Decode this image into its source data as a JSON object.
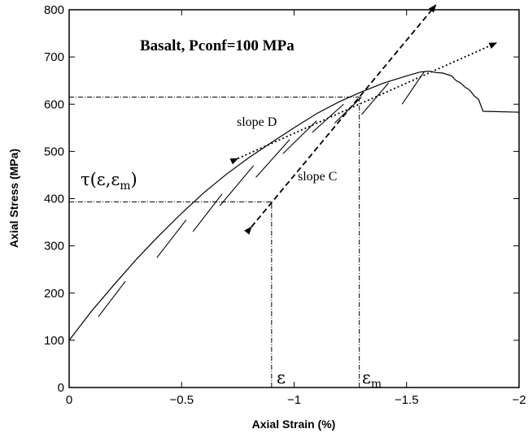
{
  "chart_data": {
    "type": "line",
    "title": "Basalt, Pconf=100 MPa",
    "xlabel": "Axial Strain (%)",
    "ylabel": "Axial Stress (MPa)",
    "xlim": [
      0,
      -2
    ],
    "ylim": [
      0,
      800
    ],
    "x_ticks": [
      0,
      -0.5,
      -1,
      -1.5,
      -2
    ],
    "x_tick_labels": [
      "0",
      "−0.5",
      "−1",
      "−1.5",
      "−2"
    ],
    "y_ticks": [
      0,
      100,
      200,
      300,
      400,
      500,
      600,
      700,
      800
    ],
    "y_tick_labels": [
      "0",
      "100",
      "200",
      "300",
      "400",
      "500",
      "600",
      "700",
      "800"
    ],
    "grid": false,
    "series": [
      {
        "role": "stress-strain-curve",
        "x": [
          0,
          -0.1,
          -0.2,
          -0.3,
          -0.4,
          -0.5,
          -0.6,
          -0.7,
          -0.8,
          -0.9,
          -1.0,
          -1.1,
          -1.2,
          -1.3,
          -1.4,
          -1.5,
          -1.56,
          -1.6,
          -1.63,
          -1.66,
          -1.7,
          -1.72,
          -1.74,
          -1.76,
          -1.78,
          -1.8,
          -1.82,
          -1.84,
          -2.0
        ],
        "y": [
          100,
          162,
          218,
          272,
          322,
          369,
          413,
          452,
          487,
          519,
          550,
          580,
          605,
          626,
          645,
          660,
          668,
          670,
          667,
          666,
          660,
          650,
          645,
          636,
          630,
          618,
          610,
          585,
          583
        ]
      }
    ],
    "unloading_segments": [
      {
        "x": [
          -0.13,
          -0.25
        ],
        "y": [
          150,
          225
        ]
      },
      {
        "x": [
          -0.39,
          -0.52
        ],
        "y": [
          275,
          355
        ]
      },
      {
        "x": [
          -0.55,
          -0.68
        ],
        "y": [
          330,
          410
        ]
      },
      {
        "x": [
          -0.67,
          -0.82
        ],
        "y": [
          385,
          470
        ]
      },
      {
        "x": [
          -0.83,
          -0.98
        ],
        "y": [
          445,
          525
        ]
      },
      {
        "x": [
          -0.95,
          -1.1
        ],
        "y": [
          495,
          565
        ]
      },
      {
        "x": [
          -1.08,
          -1.22
        ],
        "y": [
          540,
          600
        ]
      },
      {
        "x": [
          -1.18,
          -1.3
        ],
        "y": [
          560,
          615
        ]
      },
      {
        "x": [
          -1.3,
          -1.42
        ],
        "y": [
          578,
          645
        ]
      },
      {
        "x": [
          -1.48,
          -1.58
        ],
        "y": [
          600,
          670
        ]
      }
    ],
    "reference_lines": [
      {
        "name": "strain-em-drop",
        "x": [
          -1.29,
          -1.29
        ],
        "y": [
          0,
          615
        ]
      },
      {
        "name": "stress-at-em",
        "x": [
          0,
          -1.29
        ],
        "y": [
          615,
          615
        ]
      },
      {
        "name": "strain-e-drop",
        "x": [
          -0.9,
          -0.9
        ],
        "y": [
          0,
          393
        ]
      },
      {
        "name": "stress-tau",
        "x": [
          0,
          -0.9
        ],
        "y": [
          393,
          393
        ]
      }
    ],
    "slope_arrows": [
      {
        "name": "slope-C",
        "style": "dashed",
        "x": [
          -0.81,
          -1.63
        ],
        "y": [
          340,
          810
        ]
      },
      {
        "name": "slope-D",
        "style": "dotted",
        "x": [
          -0.75,
          -1.9
        ],
        "y": [
          485,
          730
        ]
      }
    ],
    "annotations": {
      "slope_d": "slope D",
      "slope_c": "slope C",
      "tau_label": "τ(ε,ε",
      "tau_sub": "m",
      "tau_close": ")",
      "eps": "ε",
      "eps_m": "ε",
      "eps_m_sub": "m"
    }
  }
}
